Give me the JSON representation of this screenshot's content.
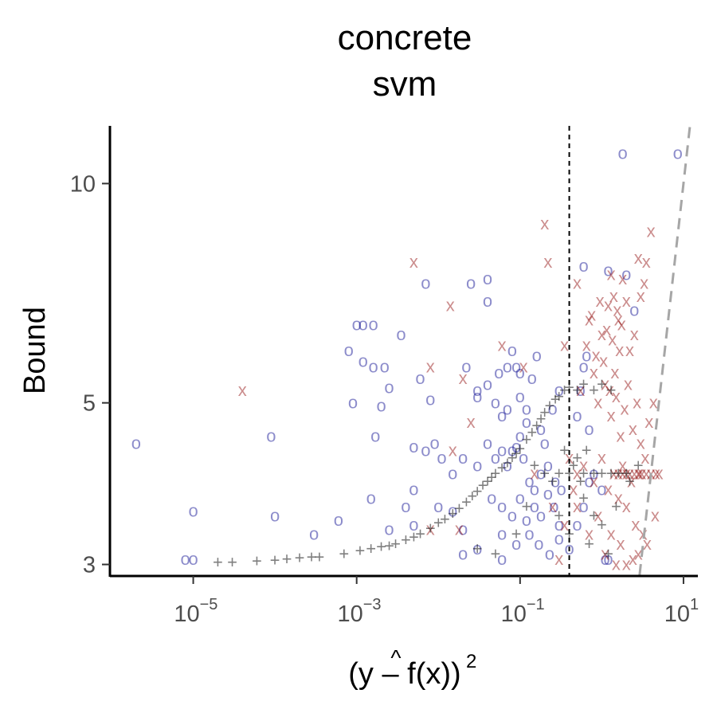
{
  "chart_data": {
    "type": "scatter",
    "title": "concrete",
    "subtitle": "svm",
    "xlabel": {
      "base": "(y – f(x))",
      "hat": "^",
      "exponent": "2"
    },
    "ylabel": "Bound",
    "x_scale": "log10",
    "y_scale": "log",
    "xlim": [
      1e-06,
      15
    ],
    "ylim": [
      2.9,
      12
    ],
    "x_ticks": [
      {
        "value": 1e-05,
        "base": "10",
        "exp": "−5"
      },
      {
        "value": 0.001,
        "base": "10",
        "exp": "−3"
      },
      {
        "value": 0.1,
        "base": "10",
        "exp": "−1"
      },
      {
        "value": 10,
        "base": "10",
        "exp": "1"
      }
    ],
    "y_ticks": [
      {
        "value": 3,
        "label": "3"
      },
      {
        "value": 5,
        "label": "5"
      },
      {
        "value": 10,
        "label": "10"
      }
    ],
    "vline_x": 0.4,
    "diagonal_line": [
      [
        2.9,
        2.9
      ],
      [
        12,
        12
      ]
    ],
    "grid": false,
    "legend": "none",
    "colors": {
      "o": "#00008b",
      "x": "#8b0000",
      "plus": "#000000",
      "diagonal": "#a6a6a6"
    },
    "series": [
      {
        "marker": "o",
        "points": [
          [
            2e-06,
            4.4
          ],
          [
            8e-06,
            3.05
          ],
          [
            1e-05,
            3.05
          ],
          [
            1e-05,
            3.55
          ],
          [
            9e-05,
            4.5
          ],
          [
            0.0001,
            3.5
          ],
          [
            0.001,
            6.4
          ],
          [
            0.0012,
            6.4
          ],
          [
            0.0016,
            6.4
          ],
          [
            0.0008,
            5.9
          ],
          [
            0.0012,
            5.7
          ],
          [
            0.0016,
            5.6
          ],
          [
            0.0022,
            5.6
          ],
          [
            0.0035,
            6.2
          ],
          [
            0.0009,
            5.0
          ],
          [
            0.0017,
            4.5
          ],
          [
            0.002,
            4.95
          ],
          [
            0.0025,
            5.25
          ],
          [
            0.005,
            4.35
          ],
          [
            0.007,
            4.3
          ],
          [
            0.009,
            4.4
          ],
          [
            0.011,
            4.2
          ],
          [
            0.006,
            5.4
          ],
          [
            0.008,
            5.05
          ],
          [
            0.005,
            3.8
          ],
          [
            0.004,
            3.6
          ],
          [
            0.0025,
            3.35
          ],
          [
            0.0015,
            3.7
          ],
          [
            0.0006,
            3.45
          ],
          [
            0.0003,
            3.3
          ],
          [
            0.007,
            7.3
          ],
          [
            0.025,
            7.3
          ],
          [
            0.04,
            7.4
          ],
          [
            0.04,
            6.9
          ],
          [
            0.005,
            3.4
          ],
          [
            0.02,
            3.1
          ],
          [
            0.03,
            3.15
          ],
          [
            0.06,
            3.05
          ],
          [
            0.02,
            3.35
          ],
          [
            0.01,
            3.6
          ],
          [
            0.015,
            3.55
          ],
          [
            0.022,
            5.6
          ],
          [
            0.03,
            5.2
          ],
          [
            0.04,
            5.3
          ],
          [
            0.05,
            5.0
          ],
          [
            0.06,
            4.8
          ],
          [
            0.07,
            5.6
          ],
          [
            0.08,
            5.9
          ],
          [
            0.09,
            5.6
          ],
          [
            0.1,
            5.1
          ],
          [
            0.12,
            4.9
          ],
          [
            0.14,
            5.4
          ],
          [
            0.16,
            5.8
          ],
          [
            0.18,
            4.6
          ],
          [
            0.2,
            4.4
          ],
          [
            0.25,
            4.9
          ],
          [
            0.3,
            5.2
          ],
          [
            0.015,
            4.0
          ],
          [
            0.02,
            4.2
          ],
          [
            0.03,
            4.1
          ],
          [
            0.04,
            4.4
          ],
          [
            0.05,
            4.2
          ],
          [
            0.06,
            4.3
          ],
          [
            0.07,
            4.1
          ],
          [
            0.08,
            4.3
          ],
          [
            0.09,
            4.35
          ],
          [
            0.1,
            4.5
          ],
          [
            0.11,
            4.2
          ],
          [
            0.13,
            3.9
          ],
          [
            0.15,
            3.8
          ],
          [
            0.18,
            4.0
          ],
          [
            0.22,
            4.1
          ],
          [
            0.27,
            3.9
          ],
          [
            0.32,
            3.8
          ],
          [
            0.045,
            3.7
          ],
          [
            0.06,
            3.6
          ],
          [
            0.08,
            3.5
          ],
          [
            0.1,
            3.7
          ],
          [
            0.12,
            3.45
          ],
          [
            0.15,
            3.6
          ],
          [
            0.18,
            3.5
          ],
          [
            0.22,
            3.75
          ],
          [
            0.26,
            3.6
          ],
          [
            0.3,
            3.4
          ],
          [
            0.06,
            3.3
          ],
          [
            0.09,
            3.2
          ],
          [
            0.13,
            3.3
          ],
          [
            0.17,
            3.2
          ],
          [
            0.23,
            3.1
          ],
          [
            0.3,
            3.25
          ],
          [
            0.4,
            3.15
          ],
          [
            0.5,
            3.4
          ],
          [
            0.6,
            3.6
          ],
          [
            0.7,
            3.9
          ],
          [
            0.8,
            4.0
          ],
          [
            1.0,
            3.8
          ],
          [
            1.2,
            3.05
          ],
          [
            1.1,
            3.05
          ],
          [
            0.5,
            4.8
          ],
          [
            0.55,
            5.2
          ],
          [
            0.6,
            5.6
          ],
          [
            0.65,
            5.8
          ],
          [
            0.7,
            4.6
          ],
          [
            1.8,
            11.0
          ],
          [
            8.5,
            11.0
          ],
          [
            0.6,
            7.7
          ],
          [
            1.2,
            7.6
          ],
          [
            2.0,
            7.5
          ],
          [
            2.5,
            6.7
          ],
          [
            0.1,
            5.5
          ],
          [
            0.055,
            5.5
          ],
          [
            0.03,
            5.1
          ],
          [
            0.07,
            4.9
          ],
          [
            0.12,
            4.7
          ]
        ]
      },
      {
        "marker": "x",
        "points": [
          [
            4e-05,
            5.2
          ],
          [
            0.005,
            7.8
          ],
          [
            0.014,
            6.8
          ],
          [
            0.008,
            5.6
          ],
          [
            0.02,
            5.4
          ],
          [
            0.025,
            4.7
          ],
          [
            0.06,
            6.0
          ],
          [
            0.2,
            8.8
          ],
          [
            0.22,
            7.8
          ],
          [
            0.11,
            5.6
          ],
          [
            0.15,
            4.0
          ],
          [
            0.015,
            4.3
          ],
          [
            0.008,
            3.35
          ],
          [
            0.018,
            3.35
          ],
          [
            0.35,
            6.0
          ],
          [
            0.5,
            7.3
          ],
          [
            0.7,
            6.5
          ],
          [
            0.8,
            5.5
          ],
          [
            1.0,
            6.2
          ],
          [
            1.2,
            6.8
          ],
          [
            1.4,
            7.0
          ],
          [
            1.6,
            6.5
          ],
          [
            1.8,
            7.4
          ],
          [
            2.0,
            6.9
          ],
          [
            2.2,
            5.9
          ],
          [
            2.5,
            6.2
          ],
          [
            3.0,
            7.0
          ],
          [
            3.5,
            7.8
          ],
          [
            4.0,
            8.6
          ],
          [
            2.8,
            7.9
          ],
          [
            3.3,
            7.3
          ],
          [
            1.3,
            7.5
          ],
          [
            0.9,
            5.0
          ],
          [
            1.1,
            5.3
          ],
          [
            1.3,
            4.8
          ],
          [
            1.5,
            5.1
          ],
          [
            1.7,
            4.5
          ],
          [
            1.9,
            4.9
          ],
          [
            2.1,
            5.3
          ],
          [
            2.4,
            4.6
          ],
          [
            2.7,
            5.0
          ],
          [
            3.0,
            4.4
          ],
          [
            3.4,
            4.2
          ],
          [
            3.8,
            4.7
          ],
          [
            4.3,
            5.0
          ],
          [
            5.0,
            4.0
          ],
          [
            4.5,
            3.5
          ],
          [
            0.6,
            4.1
          ],
          [
            0.8,
            3.9
          ],
          [
            1.0,
            4.2
          ],
          [
            1.2,
            3.8
          ],
          [
            1.4,
            4.0
          ],
          [
            1.6,
            3.7
          ],
          [
            1.8,
            4.1
          ],
          [
            2.0,
            3.6
          ],
          [
            2.3,
            3.9
          ],
          [
            2.6,
            3.4
          ],
          [
            2.9,
            4.0
          ],
          [
            3.2,
            3.3
          ],
          [
            3.6,
            3.2
          ],
          [
            0.5,
            3.6
          ],
          [
            0.7,
            3.3
          ],
          [
            0.9,
            3.5
          ],
          [
            1.1,
            3.1
          ],
          [
            1.3,
            3.3
          ],
          [
            1.5,
            3.0
          ],
          [
            1.7,
            3.2
          ],
          [
            2.0,
            3.0
          ],
          [
            2.4,
            3.05
          ],
          [
            2.8,
            3.1
          ],
          [
            0.3,
            3.05
          ],
          [
            0.35,
            3.4
          ],
          [
            0.25,
            3.6
          ],
          [
            1.6,
            4.0
          ],
          [
            1.8,
            4.0
          ],
          [
            2.0,
            4.0
          ],
          [
            2.2,
            4.0
          ],
          [
            2.5,
            4.0
          ],
          [
            2.8,
            4.0
          ],
          [
            3.1,
            4.0
          ],
          [
            3.5,
            4.0
          ],
          [
            4.0,
            4.0
          ],
          [
            4.6,
            4.0
          ],
          [
            0.5,
            4.0
          ],
          [
            0.4,
            4.2
          ],
          [
            0.45,
            3.8
          ],
          [
            0.55,
            5.2
          ],
          [
            0.65,
            6.0
          ],
          [
            0.75,
            6.6
          ],
          [
            0.85,
            5.8
          ],
          [
            0.95,
            6.9
          ],
          [
            1.05,
            5.7
          ],
          [
            1.15,
            6.3
          ],
          [
            1.25,
            5.2
          ],
          [
            1.35,
            6.1
          ],
          [
            1.45,
            5.5
          ],
          [
            1.55,
            6.7
          ],
          [
            1.65,
            5.9
          ],
          [
            1.75,
            6.4
          ]
        ]
      },
      {
        "marker": "plus",
        "points": [
          [
            2e-05,
            3.02
          ],
          [
            3e-05,
            3.02
          ],
          [
            6e-05,
            3.03
          ],
          [
            0.0001,
            3.04
          ],
          [
            0.00014,
            3.05
          ],
          [
            0.0002,
            3.06
          ],
          [
            0.00028,
            3.07
          ],
          [
            0.00035,
            3.07
          ],
          [
            0.0007,
            3.1
          ],
          [
            0.0011,
            3.13
          ],
          [
            0.0015,
            3.15
          ],
          [
            0.002,
            3.17
          ],
          [
            0.0025,
            3.18
          ],
          [
            0.003,
            3.2
          ],
          [
            0.004,
            3.24
          ],
          [
            0.005,
            3.27
          ],
          [
            0.006,
            3.3
          ],
          [
            0.008,
            3.36
          ],
          [
            0.01,
            3.42
          ],
          [
            0.012,
            3.46
          ],
          [
            0.015,
            3.52
          ],
          [
            0.018,
            3.58
          ],
          [
            0.022,
            3.65
          ],
          [
            0.026,
            3.72
          ],
          [
            0.03,
            3.78
          ],
          [
            0.035,
            3.85
          ],
          [
            0.04,
            3.9
          ],
          [
            0.045,
            3.95
          ],
          [
            0.05,
            4.0
          ],
          [
            0.06,
            4.07
          ],
          [
            0.07,
            4.13
          ],
          [
            0.08,
            4.2
          ],
          [
            0.09,
            4.26
          ],
          [
            0.1,
            4.32
          ],
          [
            0.12,
            4.45
          ],
          [
            0.14,
            4.55
          ],
          [
            0.16,
            4.65
          ],
          [
            0.18,
            4.75
          ],
          [
            0.2,
            4.85
          ],
          [
            0.23,
            4.95
          ],
          [
            0.27,
            5.05
          ],
          [
            0.3,
            5.1
          ],
          [
            0.35,
            5.2
          ],
          [
            0.4,
            5.25
          ],
          [
            0.5,
            5.2
          ],
          [
            0.6,
            5.3
          ],
          [
            0.8,
            5.2
          ],
          [
            1.0,
            5.3
          ],
          [
            1.3,
            5.2
          ],
          [
            0.2,
            4.0
          ],
          [
            0.3,
            4.0
          ],
          [
            0.4,
            4.0
          ],
          [
            0.6,
            4.0
          ],
          [
            0.8,
            4.0
          ],
          [
            1.0,
            4.0
          ],
          [
            1.3,
            4.0
          ],
          [
            1.6,
            4.0
          ],
          [
            2.0,
            4.0
          ],
          [
            0.5,
            4.2
          ],
          [
            0.6,
            3.7
          ],
          [
            0.8,
            3.5
          ],
          [
            1.0,
            3.4
          ],
          [
            1.5,
            3.6
          ],
          [
            0.4,
            3.3
          ],
          [
            0.3,
            3.5
          ],
          [
            0.12,
            3.6
          ],
          [
            0.09,
            3.3
          ],
          [
            0.7,
            3.2
          ],
          [
            1.2,
            3.1
          ],
          [
            0.05,
            3.1
          ],
          [
            0.03,
            3.15
          ],
          [
            2.2,
            3.9
          ],
          [
            2.8,
            4.1
          ],
          [
            0.25,
            3.9
          ],
          [
            0.15,
            4.1
          ],
          [
            0.45,
            4.1
          ],
          [
            0.65,
            4.3
          ],
          [
            0.35,
            4.3
          ],
          [
            0.55,
            3.9
          ]
        ]
      }
    ]
  }
}
